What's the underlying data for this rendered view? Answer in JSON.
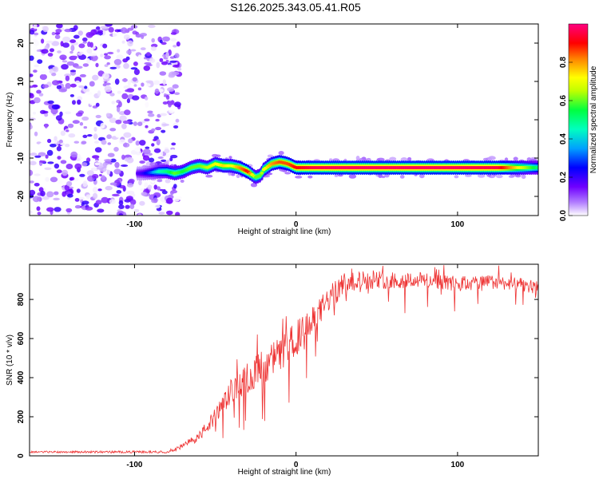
{
  "title": "S126.2025.343.05.41.R05",
  "chart_data": [
    {
      "type": "heatmap",
      "xlabel": "Height of straight line (km)",
      "ylabel": "Frequency (Hz)",
      "xlim": [
        -165,
        150
      ],
      "ylim": [
        -25,
        25
      ],
      "xticks": [
        -100,
        0,
        100
      ],
      "yticks": [
        -20,
        -10,
        0,
        10,
        20
      ],
      "colorbar": {
        "label": "Normalized spectral amplitude",
        "range": [
          0,
          1
        ],
        "ticks": [
          0.0,
          0.2,
          0.4,
          0.6,
          0.8
        ],
        "colors": [
          "#ffffff",
          "#8a2be2",
          "#0000ff",
          "#00bfff",
          "#00ff66",
          "#bfff00",
          "#ffff00",
          "#ff8000",
          "#ff0000",
          "#ff0080"
        ]
      },
      "ridge": {
        "x": [
          -100,
          -95,
          -90,
          -85,
          -80,
          -75,
          -70,
          -65,
          -60,
          -55,
          -50,
          -45,
          -40,
          -35,
          -30,
          -25,
          -22,
          -20,
          -15,
          -10,
          -5,
          0,
          10,
          25,
          50,
          75,
          100,
          125,
          150
        ],
        "freq": [
          -14,
          -14,
          -13.8,
          -13.5,
          -13.5,
          -14,
          -13.5,
          -12.5,
          -12,
          -12.5,
          -11.5,
          -12,
          -12,
          -12.5,
          -13.5,
          -15,
          -14.5,
          -13,
          -11.5,
          -11,
          -11.5,
          -12.5,
          -12.5,
          -12.5,
          -12.5,
          -12.5,
          -12.5,
          -12.5,
          -12.5
        ],
        "amplitude": [
          0.15,
          0.2,
          0.3,
          0.45,
          0.5,
          0.6,
          0.55,
          0.6,
          0.6,
          0.65,
          0.7,
          0.75,
          0.7,
          0.8,
          0.9,
          0.6,
          0.6,
          0.7,
          0.8,
          0.85,
          0.85,
          0.9,
          0.95,
          0.97,
          0.97,
          0.97,
          0.97,
          0.95,
          0.5
        ]
      },
      "noise_region_x": [
        -165,
        -80
      ]
    },
    {
      "type": "line",
      "xlabel": "Height of straight line (km)",
      "ylabel": "SNR (10 * v/v)",
      "xlim": [
        -165,
        150
      ],
      "ylim": [
        0,
        980
      ],
      "xticks": [
        -100,
        0,
        100
      ],
      "yticks": [
        0,
        200,
        400,
        600,
        800
      ],
      "color": "#ee3333",
      "trend": {
        "x": [
          -165,
          -80,
          -70,
          -60,
          -50,
          -40,
          -30,
          -20,
          -10,
          0,
          10,
          20,
          30,
          40,
          60,
          80,
          100,
          120,
          150
        ],
        "y": [
          20,
          20,
          50,
          100,
          200,
          330,
          400,
          460,
          520,
          600,
          680,
          800,
          880,
          900,
          900,
          900,
          880,
          890,
          870
        ]
      },
      "noise_amplitude": {
        "x": [
          -165,
          -80,
          -60,
          -40,
          -20,
          0,
          20,
          40,
          80,
          120,
          150
        ],
        "y": [
          8,
          10,
          40,
          110,
          150,
          150,
          110,
          80,
          70,
          60,
          50
        ]
      }
    }
  ]
}
